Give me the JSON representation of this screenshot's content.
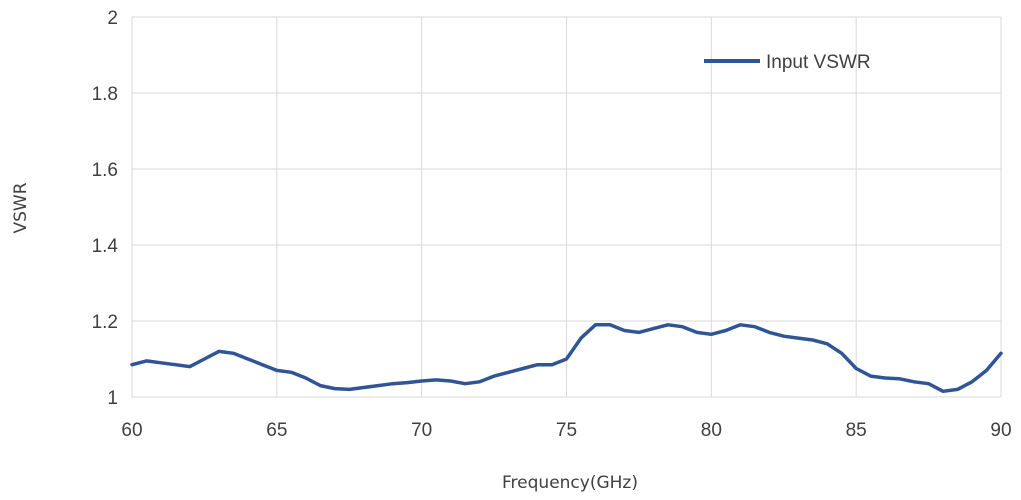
{
  "chart_data": {
    "type": "line",
    "title": "",
    "xlabel": "Frequency(GHz)",
    "ylabel": "VSWR",
    "xlim": [
      60,
      90
    ],
    "ylim": [
      1,
      2
    ],
    "x_ticks": [
      "60",
      "65",
      "70",
      "75",
      "80",
      "85",
      "90"
    ],
    "y_ticks": [
      "1",
      "1.2",
      "1.4",
      "1.6",
      "1.8",
      "2"
    ],
    "grid": "vertical",
    "legend_position": "top-right",
    "series": [
      {
        "name": "Input VSWR",
        "color": "#2F5597",
        "x": [
          60,
          60.5,
          61,
          61.5,
          62,
          62.5,
          63,
          63.5,
          64,
          64.5,
          65,
          65.5,
          66,
          66.5,
          67,
          67.5,
          68,
          68.5,
          69,
          69.5,
          70,
          70.5,
          71,
          71.5,
          72,
          72.5,
          73,
          73.5,
          74,
          74.5,
          75,
          75.5,
          76,
          76.5,
          77,
          77.5,
          78,
          78.5,
          79,
          79.5,
          80,
          80.5,
          81,
          81.5,
          82,
          82.5,
          83,
          83.5,
          84,
          84.5,
          85,
          85.5,
          86,
          86.5,
          87,
          87.5,
          88,
          88.5,
          89,
          89.5,
          90
        ],
        "y": [
          1.085,
          1.095,
          1.09,
          1.085,
          1.08,
          1.1,
          1.12,
          1.115,
          1.1,
          1.085,
          1.07,
          1.065,
          1.05,
          1.03,
          1.022,
          1.02,
          1.025,
          1.03,
          1.035,
          1.038,
          1.042,
          1.045,
          1.042,
          1.035,
          1.04,
          1.055,
          1.065,
          1.075,
          1.085,
          1.085,
          1.1,
          1.155,
          1.19,
          1.19,
          1.175,
          1.17,
          1.18,
          1.19,
          1.185,
          1.17,
          1.165,
          1.175,
          1.19,
          1.185,
          1.17,
          1.16,
          1.155,
          1.15,
          1.14,
          1.115,
          1.075,
          1.055,
          1.05,
          1.048,
          1.04,
          1.035,
          1.015,
          1.02,
          1.04,
          1.07,
          1.115
        ]
      }
    ]
  }
}
